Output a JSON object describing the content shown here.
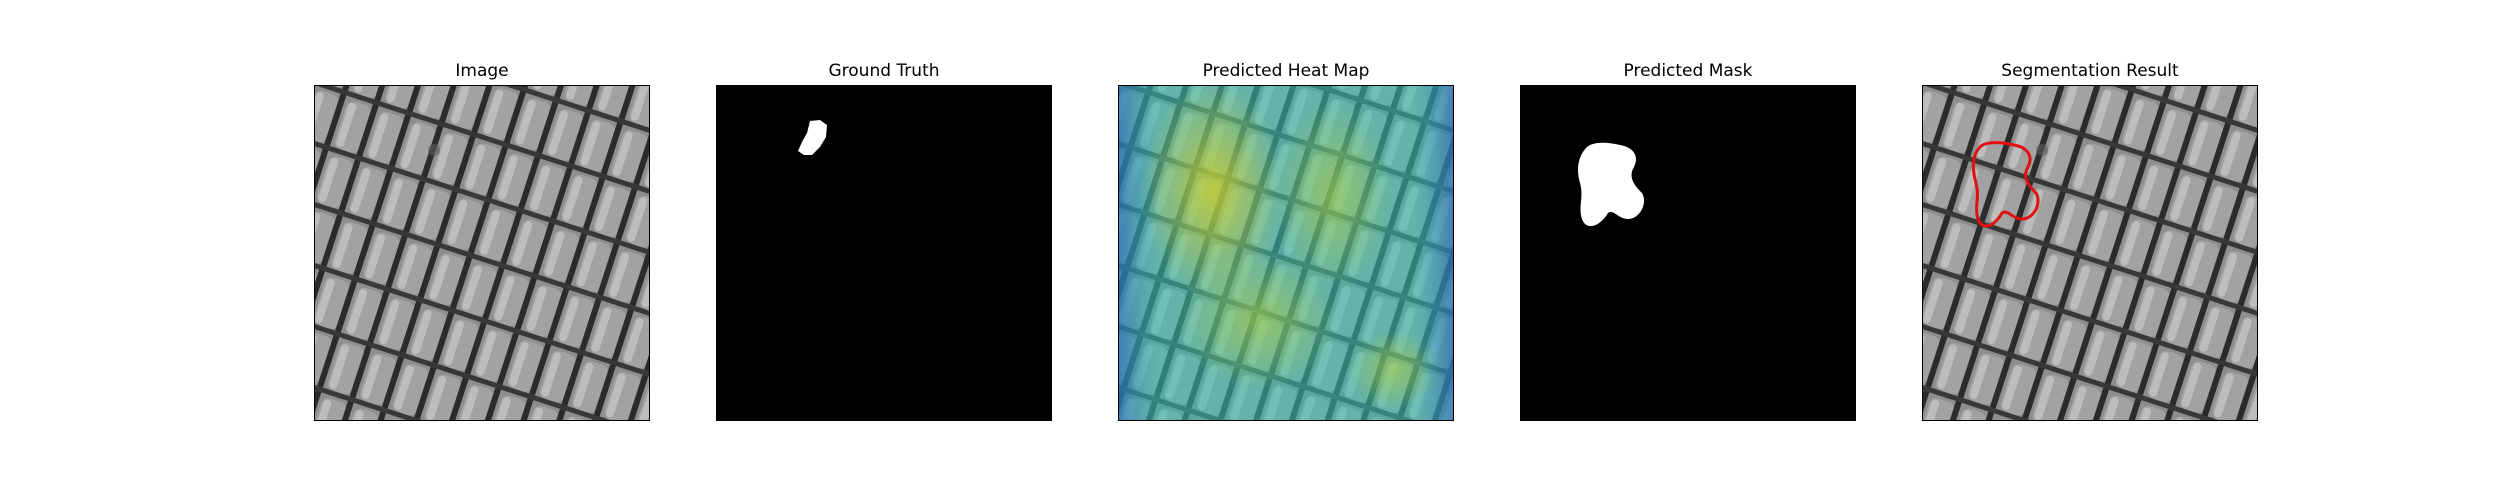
{
  "panels": [
    {
      "title": "Image",
      "content": "grayscale mesh texture"
    },
    {
      "title": "Ground Truth",
      "content": "binary mask"
    },
    {
      "title": "Predicted Heat Map",
      "content": "heat map overlay"
    },
    {
      "title": "Predicted Mask",
      "content": "binary mask"
    },
    {
      "title": "Segmentation Result",
      "content": "texture with contour"
    }
  ],
  "colors": {
    "mask_background": "#000000",
    "mask_foreground": "#ffffff",
    "contour": "#e01010",
    "texture_base": "#8a8a8a"
  }
}
